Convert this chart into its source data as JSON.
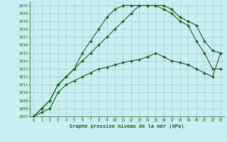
{
  "title": "Graphe pression niveau de la mer (hPa)",
  "bg_color": "#c8eef0",
  "grid_color": "#a8d0d0",
  "line_color": "#1a6020",
  "xlim": [
    -0.5,
    23.5
  ],
  "ylim": [
    1007,
    1021.5
  ],
  "xticks": [
    0,
    1,
    2,
    3,
    4,
    5,
    6,
    7,
    8,
    9,
    10,
    11,
    12,
    13,
    14,
    15,
    16,
    17,
    18,
    19,
    20,
    21,
    22,
    23
  ],
  "yticks": [
    1007,
    1008,
    1009,
    1010,
    1011,
    1012,
    1013,
    1014,
    1015,
    1016,
    1017,
    1018,
    1019,
    1020,
    1021
  ],
  "line_top_x": [
    0,
    1,
    2,
    3,
    4,
    5,
    6,
    7,
    8,
    9,
    10,
    11,
    12,
    13,
    14,
    15,
    16,
    17,
    18,
    19,
    20,
    21,
    22,
    23
  ],
  "line_top_y": [
    1007,
    1008,
    1009,
    1011,
    1012,
    1013,
    1015,
    1016.5,
    1018,
    1019.5,
    1020.5,
    1021,
    1021,
    1021,
    1021,
    1021,
    1020.5,
    1020,
    1019,
    1018.5,
    1016.5,
    1015,
    1013,
    1013
  ],
  "line_mid_x": [
    0,
    1,
    2,
    3,
    4,
    5,
    6,
    7,
    8,
    9,
    10,
    11,
    12,
    13,
    14,
    15,
    16,
    17,
    18,
    19,
    20,
    21,
    22,
    23
  ],
  "line_mid_y": [
    1007,
    1008,
    1009,
    1011,
    1012,
    1013,
    1014,
    1015,
    1016,
    1017,
    1018,
    1019,
    1020,
    1021,
    1021,
    1021,
    1021,
    1020.5,
    1019.5,
    1019,
    1018.5,
    1016.5,
    1015.3,
    1015
  ],
  "line_bot_x": [
    0,
    1,
    2,
    3,
    4,
    5,
    6,
    7,
    8,
    9,
    10,
    11,
    12,
    13,
    14,
    15,
    16,
    17,
    18,
    19,
    20,
    21,
    22,
    23
  ],
  "line_bot_y": [
    1007,
    1007.5,
    1008,
    1010,
    1011,
    1011.5,
    1012,
    1012.5,
    1013,
    1013.2,
    1013.5,
    1013.8,
    1014,
    1014.2,
    1014.5,
    1015,
    1014.5,
    1014,
    1013.8,
    1013.5,
    1013,
    1012.5,
    1012,
    1015
  ]
}
